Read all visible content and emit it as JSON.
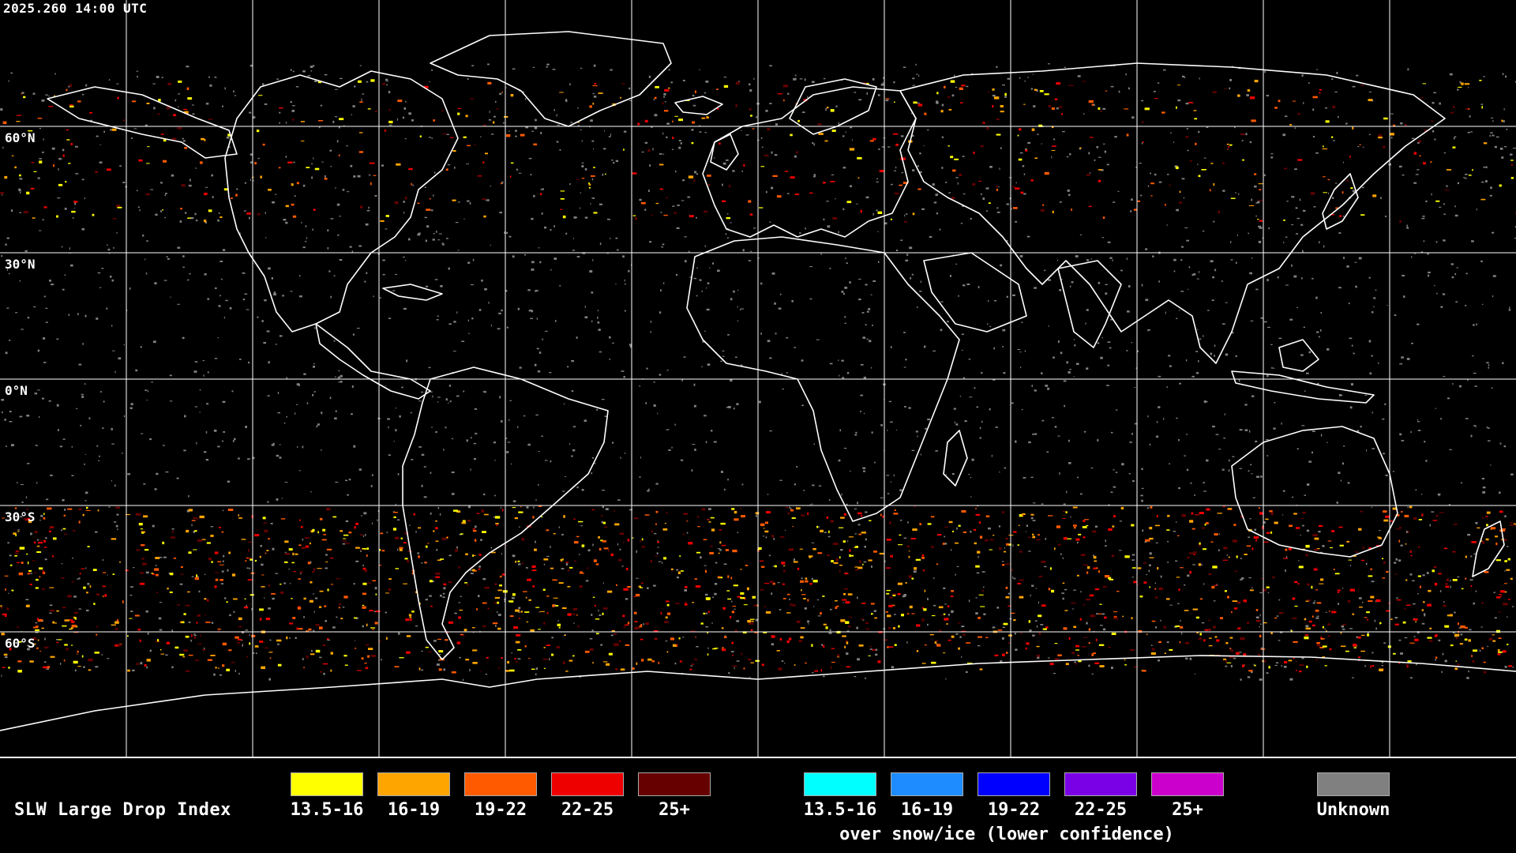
{
  "timestamp": "2025.260 14:00 UTC",
  "map": {
    "projection": "equirectangular",
    "lat_labels": [
      "60°N",
      "30°N",
      "0°N",
      "30°S",
      "60°S"
    ],
    "grid_color": "#ffffff",
    "coast_color": "#ffffff"
  },
  "legend": {
    "title": "SLW Large Drop Index",
    "primary": [
      {
        "label": "13.5-16",
        "color": "#ffff00"
      },
      {
        "label": "16-19",
        "color": "#ffa500"
      },
      {
        "label": "19-22",
        "color": "#ff5a00"
      },
      {
        "label": "22-25",
        "color": "#ee0000"
      },
      {
        "label": "25+",
        "color": "#660000"
      }
    ],
    "snow_ice": [
      {
        "label": "13.5-16",
        "color": "#00ffff"
      },
      {
        "label": "16-19",
        "color": "#1e8cff"
      },
      {
        "label": "19-22",
        "color": "#0000ff"
      },
      {
        "label": "22-25",
        "color": "#7a00e6"
      },
      {
        "label": "25+",
        "color": "#cc00cc"
      }
    ],
    "snow_ice_caption": "over snow/ice (lower confidence)",
    "unknown": {
      "label": "Unknown",
      "color": "#808080"
    }
  }
}
